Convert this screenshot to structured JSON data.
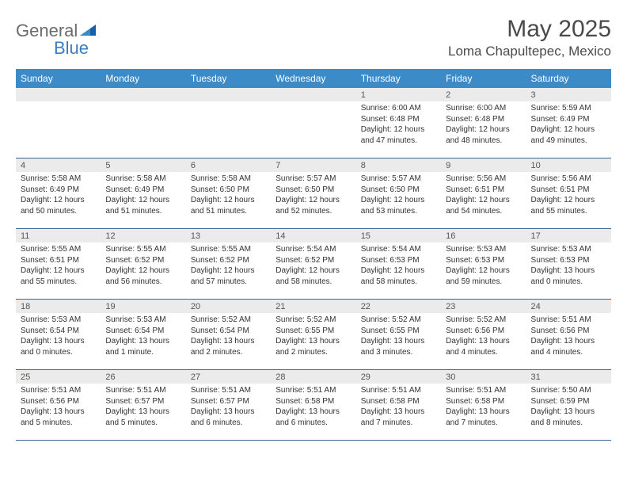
{
  "logo": {
    "word1": "General",
    "word2": "Blue"
  },
  "title": "May 2025",
  "location": "Loma Chapultepec, Mexico",
  "colors": {
    "headerBg": "#3b8bc9",
    "headerText": "#ffffff",
    "dayNumBg": "#ebebeb",
    "weekBorder": "#3b6a95",
    "bodyText": "#333333",
    "titleText": "#4a4a4a",
    "logoGray": "#6b6b6b",
    "logoBlue": "#3b7dbf"
  },
  "dayNames": [
    "Sunday",
    "Monday",
    "Tuesday",
    "Wednesday",
    "Thursday",
    "Friday",
    "Saturday"
  ],
  "weeks": [
    [
      {
        "n": "",
        "sr": "",
        "ss": "",
        "dl": ""
      },
      {
        "n": "",
        "sr": "",
        "ss": "",
        "dl": ""
      },
      {
        "n": "",
        "sr": "",
        "ss": "",
        "dl": ""
      },
      {
        "n": "",
        "sr": "",
        "ss": "",
        "dl": ""
      },
      {
        "n": "1",
        "sr": "Sunrise: 6:00 AM",
        "ss": "Sunset: 6:48 PM",
        "dl": "Daylight: 12 hours and 47 minutes."
      },
      {
        "n": "2",
        "sr": "Sunrise: 6:00 AM",
        "ss": "Sunset: 6:48 PM",
        "dl": "Daylight: 12 hours and 48 minutes."
      },
      {
        "n": "3",
        "sr": "Sunrise: 5:59 AM",
        "ss": "Sunset: 6:49 PM",
        "dl": "Daylight: 12 hours and 49 minutes."
      }
    ],
    [
      {
        "n": "4",
        "sr": "Sunrise: 5:58 AM",
        "ss": "Sunset: 6:49 PM",
        "dl": "Daylight: 12 hours and 50 minutes."
      },
      {
        "n": "5",
        "sr": "Sunrise: 5:58 AM",
        "ss": "Sunset: 6:49 PM",
        "dl": "Daylight: 12 hours and 51 minutes."
      },
      {
        "n": "6",
        "sr": "Sunrise: 5:58 AM",
        "ss": "Sunset: 6:50 PM",
        "dl": "Daylight: 12 hours and 51 minutes."
      },
      {
        "n": "7",
        "sr": "Sunrise: 5:57 AM",
        "ss": "Sunset: 6:50 PM",
        "dl": "Daylight: 12 hours and 52 minutes."
      },
      {
        "n": "8",
        "sr": "Sunrise: 5:57 AM",
        "ss": "Sunset: 6:50 PM",
        "dl": "Daylight: 12 hours and 53 minutes."
      },
      {
        "n": "9",
        "sr": "Sunrise: 5:56 AM",
        "ss": "Sunset: 6:51 PM",
        "dl": "Daylight: 12 hours and 54 minutes."
      },
      {
        "n": "10",
        "sr": "Sunrise: 5:56 AM",
        "ss": "Sunset: 6:51 PM",
        "dl": "Daylight: 12 hours and 55 minutes."
      }
    ],
    [
      {
        "n": "11",
        "sr": "Sunrise: 5:55 AM",
        "ss": "Sunset: 6:51 PM",
        "dl": "Daylight: 12 hours and 55 minutes."
      },
      {
        "n": "12",
        "sr": "Sunrise: 5:55 AM",
        "ss": "Sunset: 6:52 PM",
        "dl": "Daylight: 12 hours and 56 minutes."
      },
      {
        "n": "13",
        "sr": "Sunrise: 5:55 AM",
        "ss": "Sunset: 6:52 PM",
        "dl": "Daylight: 12 hours and 57 minutes."
      },
      {
        "n": "14",
        "sr": "Sunrise: 5:54 AM",
        "ss": "Sunset: 6:52 PM",
        "dl": "Daylight: 12 hours and 58 minutes."
      },
      {
        "n": "15",
        "sr": "Sunrise: 5:54 AM",
        "ss": "Sunset: 6:53 PM",
        "dl": "Daylight: 12 hours and 58 minutes."
      },
      {
        "n": "16",
        "sr": "Sunrise: 5:53 AM",
        "ss": "Sunset: 6:53 PM",
        "dl": "Daylight: 12 hours and 59 minutes."
      },
      {
        "n": "17",
        "sr": "Sunrise: 5:53 AM",
        "ss": "Sunset: 6:53 PM",
        "dl": "Daylight: 13 hours and 0 minutes."
      }
    ],
    [
      {
        "n": "18",
        "sr": "Sunrise: 5:53 AM",
        "ss": "Sunset: 6:54 PM",
        "dl": "Daylight: 13 hours and 0 minutes."
      },
      {
        "n": "19",
        "sr": "Sunrise: 5:53 AM",
        "ss": "Sunset: 6:54 PM",
        "dl": "Daylight: 13 hours and 1 minute."
      },
      {
        "n": "20",
        "sr": "Sunrise: 5:52 AM",
        "ss": "Sunset: 6:54 PM",
        "dl": "Daylight: 13 hours and 2 minutes."
      },
      {
        "n": "21",
        "sr": "Sunrise: 5:52 AM",
        "ss": "Sunset: 6:55 PM",
        "dl": "Daylight: 13 hours and 2 minutes."
      },
      {
        "n": "22",
        "sr": "Sunrise: 5:52 AM",
        "ss": "Sunset: 6:55 PM",
        "dl": "Daylight: 13 hours and 3 minutes."
      },
      {
        "n": "23",
        "sr": "Sunrise: 5:52 AM",
        "ss": "Sunset: 6:56 PM",
        "dl": "Daylight: 13 hours and 4 minutes."
      },
      {
        "n": "24",
        "sr": "Sunrise: 5:51 AM",
        "ss": "Sunset: 6:56 PM",
        "dl": "Daylight: 13 hours and 4 minutes."
      }
    ],
    [
      {
        "n": "25",
        "sr": "Sunrise: 5:51 AM",
        "ss": "Sunset: 6:56 PM",
        "dl": "Daylight: 13 hours and 5 minutes."
      },
      {
        "n": "26",
        "sr": "Sunrise: 5:51 AM",
        "ss": "Sunset: 6:57 PM",
        "dl": "Daylight: 13 hours and 5 minutes."
      },
      {
        "n": "27",
        "sr": "Sunrise: 5:51 AM",
        "ss": "Sunset: 6:57 PM",
        "dl": "Daylight: 13 hours and 6 minutes."
      },
      {
        "n": "28",
        "sr": "Sunrise: 5:51 AM",
        "ss": "Sunset: 6:58 PM",
        "dl": "Daylight: 13 hours and 6 minutes."
      },
      {
        "n": "29",
        "sr": "Sunrise: 5:51 AM",
        "ss": "Sunset: 6:58 PM",
        "dl": "Daylight: 13 hours and 7 minutes."
      },
      {
        "n": "30",
        "sr": "Sunrise: 5:51 AM",
        "ss": "Sunset: 6:58 PM",
        "dl": "Daylight: 13 hours and 7 minutes."
      },
      {
        "n": "31",
        "sr": "Sunrise: 5:50 AM",
        "ss": "Sunset: 6:59 PM",
        "dl": "Daylight: 13 hours and 8 minutes."
      }
    ]
  ]
}
